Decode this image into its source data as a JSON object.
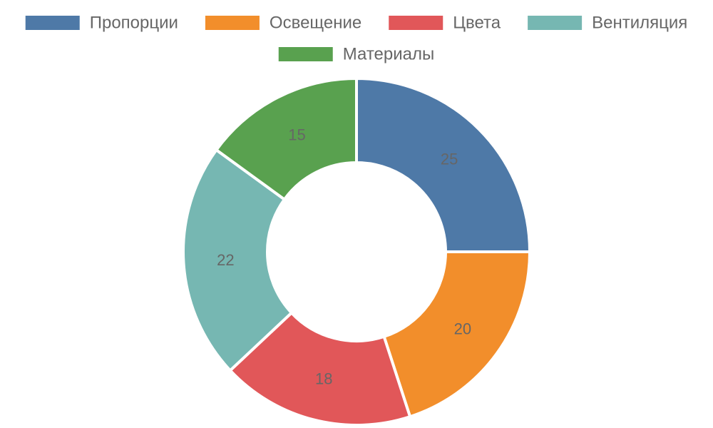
{
  "chart_data": {
    "type": "pie",
    "variant": "doughnut",
    "legend_placement": "top",
    "categories": [
      "Пропорции",
      "Освещение",
      "Цвета",
      "Вентиляция",
      "Материалы"
    ],
    "values": [
      25,
      20,
      18,
      22,
      15
    ],
    "colors": [
      "#4e79a7",
      "#f28e2b",
      "#e15759",
      "#76b7b2",
      "#59a14f"
    ],
    "value_labels": [
      "25",
      "20",
      "18",
      "22",
      "15"
    ]
  }
}
